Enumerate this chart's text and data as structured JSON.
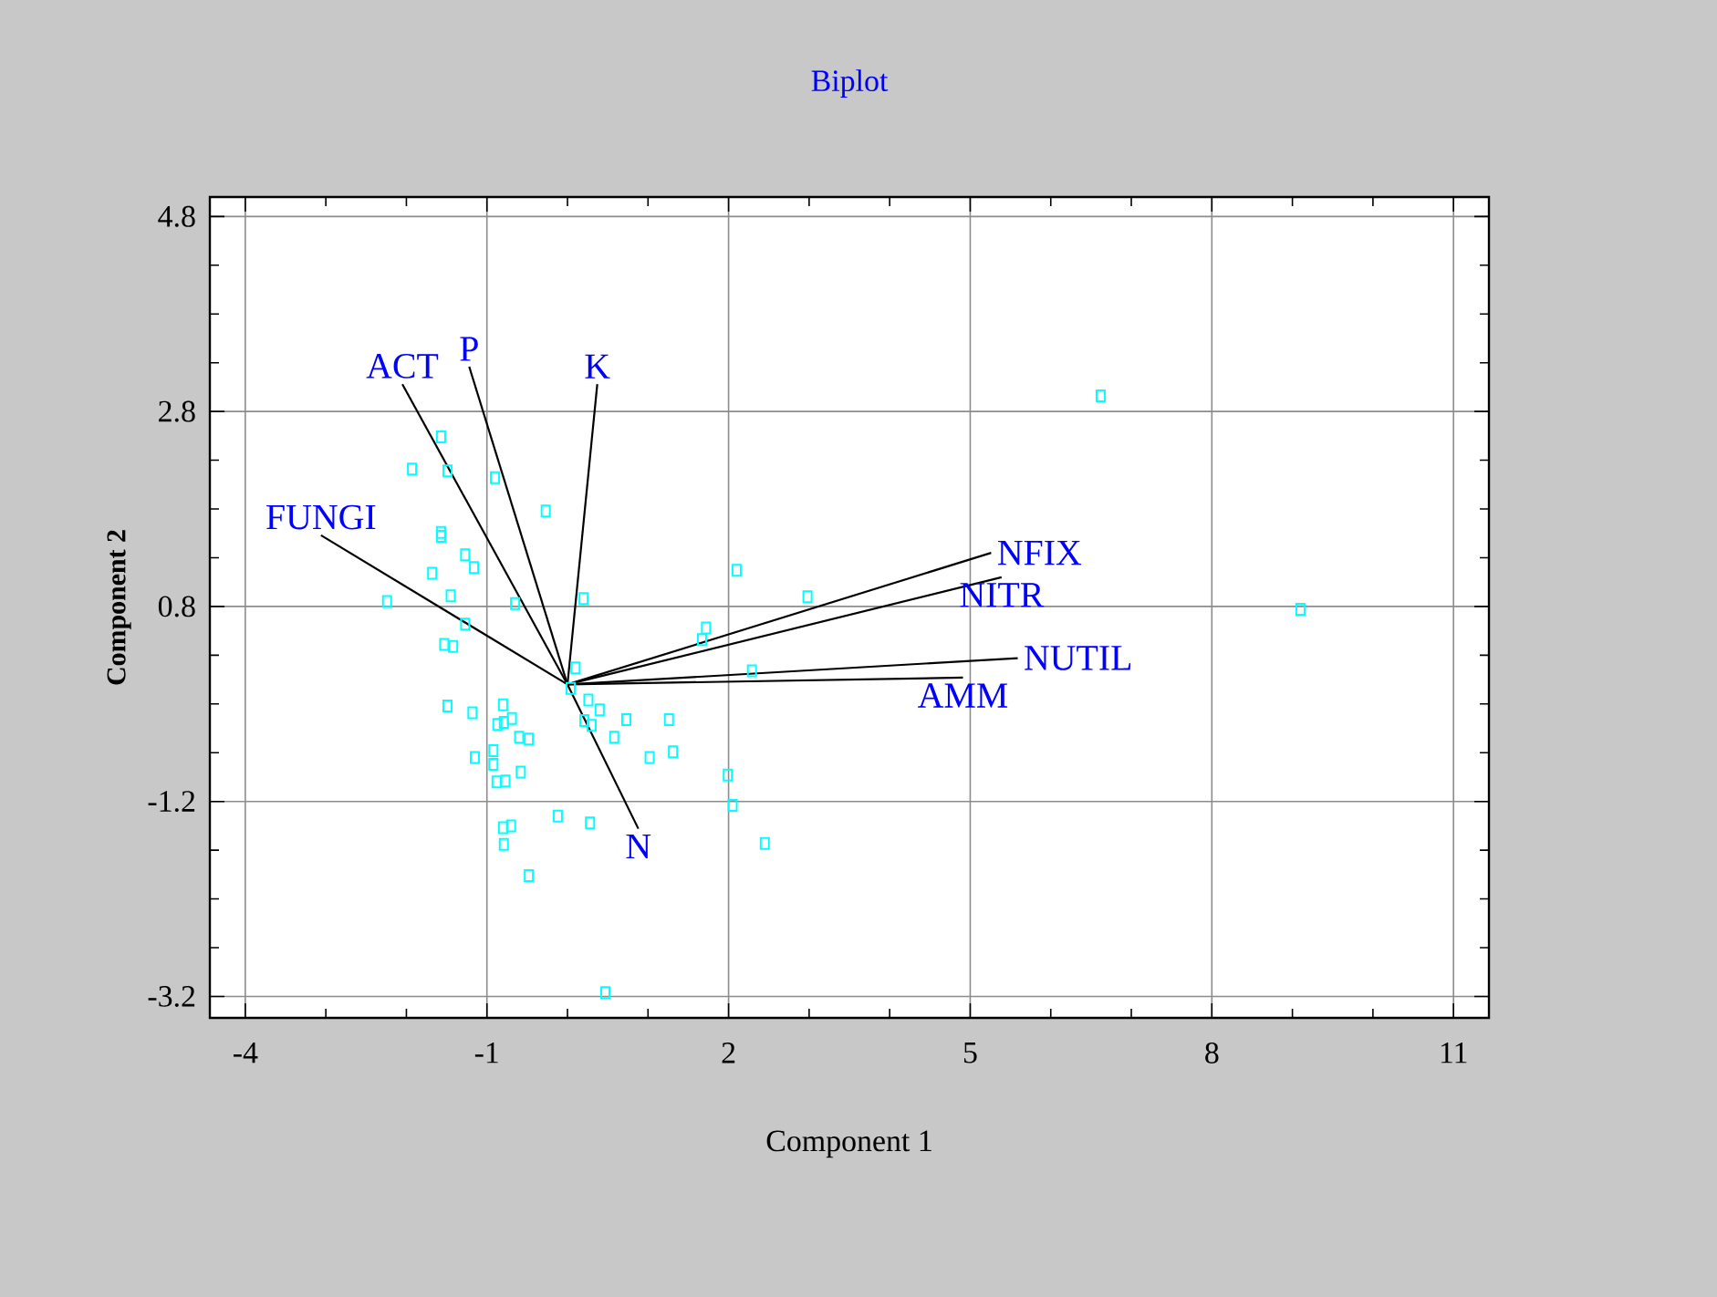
{
  "chart_data": {
    "type": "scatter",
    "title": "Biplot",
    "xlabel": "Component 1",
    "ylabel": "Component 2",
    "xlim": [
      -4.44,
      11.44
    ],
    "ylim": [
      -3.42,
      5.0
    ],
    "xticks": [
      -4,
      -1,
      2,
      5,
      8,
      11
    ],
    "yticks": [
      -3.2,
      -1.2,
      0.8,
      2.8,
      4.8
    ],
    "grid": true,
    "marker": "square",
    "series": [
      {
        "color": "#00ffff",
        "x": [
          -1.57,
          -1.93,
          -1.49,
          -0.9,
          -0.27,
          -1.57,
          -1.57,
          -1.27,
          -1.16,
          -1.68,
          -1.45,
          -2.24,
          -0.65,
          0.2,
          2.1,
          2.98,
          -1.27,
          -1.53,
          -1.42,
          1.72,
          1.67,
          0.1,
          0.04,
          2.29,
          -1.49,
          -1.18,
          -0.8,
          -0.69,
          -0.87,
          -0.79,
          0.26,
          0.4,
          0.21,
          0.3,
          0.73,
          1.26,
          -0.6,
          -0.48,
          0.58,
          -1.15,
          -0.92,
          -0.92,
          -0.88,
          -0.77,
          -0.58,
          1.02,
          1.31,
          1.99,
          2.05,
          -0.12,
          0.28,
          -0.8,
          -0.7,
          -0.79,
          2.45,
          -0.48,
          0.47,
          6.62,
          9.1
        ],
        "values": [
          2.54,
          2.21,
          2.19,
          2.12,
          1.78,
          1.56,
          1.52,
          1.33,
          1.2,
          1.14,
          0.91,
          0.85,
          0.83,
          0.88,
          1.17,
          0.9,
          0.62,
          0.41,
          0.39,
          0.58,
          0.46,
          0.17,
          -0.04,
          0.14,
          -0.22,
          -0.29,
          -0.21,
          -0.35,
          -0.41,
          -0.39,
          -0.16,
          -0.26,
          -0.37,
          -0.42,
          -0.36,
          -0.36,
          -0.54,
          -0.56,
          -0.54,
          -0.75,
          -0.68,
          -0.82,
          -1.0,
          -0.99,
          -0.9,
          -0.75,
          -0.69,
          -0.93,
          -1.24,
          -1.35,
          -1.42,
          -1.47,
          -1.45,
          -1.64,
          -1.63,
          -1.96,
          -3.16,
          2.96,
          0.77
        ]
      },
      {
        "type": "line",
        "name": "FUNGI",
        "color": "#000000",
        "marker": "none",
        "x": [
          0,
          -3.06
        ],
        "values": [
          0,
          1.53
        ]
      },
      {
        "type": "line",
        "name": "ACT",
        "color": "#000000",
        "marker": "none",
        "x": [
          0,
          -2.05
        ],
        "values": [
          0,
          3.08
        ]
      },
      {
        "type": "line",
        "name": "P",
        "color": "#000000",
        "marker": "none",
        "x": [
          0,
          -1.22
        ],
        "values": [
          0,
          3.26
        ]
      },
      {
        "type": "line",
        "name": "K",
        "color": "#000000",
        "marker": "none",
        "x": [
          0,
          0.37
        ],
        "values": [
          0,
          3.08
        ]
      },
      {
        "type": "line",
        "name": "N",
        "color": "#000000",
        "marker": "none",
        "x": [
          0,
          0.88
        ],
        "values": [
          0,
          -1.48
        ]
      },
      {
        "type": "line",
        "name": "NFIX",
        "color": "#000000",
        "marker": "none",
        "x": [
          0,
          5.26
        ],
        "values": [
          0,
          1.35
        ]
      },
      {
        "type": "line",
        "name": "NITR",
        "color": "#000000",
        "marker": "none",
        "x": [
          0,
          5.39
        ],
        "values": [
          0,
          1.1
        ]
      },
      {
        "type": "line",
        "name": "NUTIL",
        "color": "#000000",
        "marker": "none",
        "x": [
          0,
          5.59
        ],
        "values": [
          0,
          0.27
        ]
      },
      {
        "type": "line",
        "name": "AMM",
        "color": "#000000",
        "marker": "none",
        "x": [
          0,
          4.91
        ],
        "values": [
          0,
          0.07
        ]
      }
    ]
  }
}
